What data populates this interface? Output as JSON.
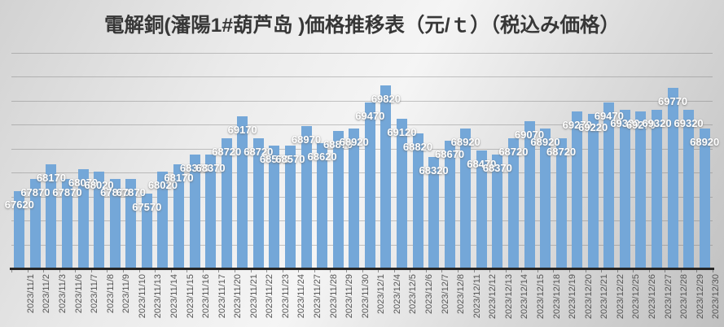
{
  "title": "電解銅(瀋陽1#葫芦岛 )価格推移表（元/ｔ）（税込み価格）",
  "chart_data": {
    "type": "bar",
    "title": "電解銅(瀋陽1#葫芦岛 )価格推移表（元/ｔ）（税込み価格）",
    "categories": [
      "2023/11/1",
      "2023/11/2",
      "2023/11/3",
      "2023/11/6",
      "2023/11/7",
      "2023/11/8",
      "2023/11/9",
      "2023/11/10",
      "2023/11/13",
      "2023/11/14",
      "2023/11/15",
      "2023/11/16",
      "2023/11/17",
      "2023/11/20",
      "2023/11/21",
      "2023/11/22",
      "2023/11/23",
      "2023/11/24",
      "2023/11/27",
      "2023/11/28",
      "2023/11/29",
      "2023/11/30",
      "2023/12/1",
      "2023/12/4",
      "2023/12/5",
      "2023/12/6",
      "2023/12/7",
      "2023/12/8",
      "2023/12/11",
      "2023/12/12",
      "2023/12/13",
      "2023/12/14",
      "2023/12/15",
      "2023/12/18",
      "2023/12/19",
      "2023/12/20",
      "2023/12/21",
      "2023/12/22",
      "2023/12/25",
      "2023/12/26",
      "2023/12/27",
      "2023/12/28",
      "2023/12/29",
      "2023/12/30"
    ],
    "values": [
      67620,
      67870,
      68170,
      67870,
      68070,
      68020,
      67870,
      67870,
      67570,
      68020,
      68170,
      68370,
      68370,
      68720,
      69170,
      68720,
      68570,
      68570,
      68970,
      68620,
      68870,
      68920,
      69470,
      69820,
      69120,
      68820,
      68320,
      68670,
      68920,
      68470,
      68370,
      68720,
      69070,
      68920,
      68720,
      69270,
      69220,
      69470,
      69320,
      69270,
      69320,
      69770,
      69320,
      68920
    ],
    "xlabel": "",
    "ylabel": "",
    "ylim": [
      66000,
      70500
    ],
    "gridline_step": 500,
    "grid": true,
    "legend": false,
    "bar_color": "#74a7d8",
    "data_label_color": "#ffffff",
    "axis_label_color": "#555555"
  }
}
